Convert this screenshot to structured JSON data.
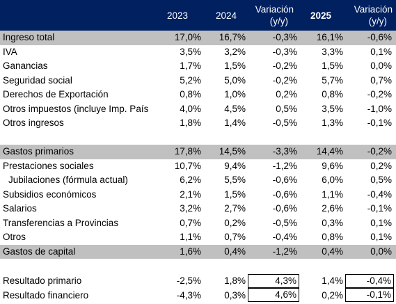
{
  "header": {
    "col_2023": "2023",
    "col_2024": "2024",
    "var1_line1": "Variación",
    "var1_line2": "(y/y)",
    "col_2025": "2025",
    "var2_line1": "Variación",
    "var2_line2": "(y/y)"
  },
  "rows": [
    {
      "label": "Ingreso total",
      "v2023": "17,0%",
      "v2024": "16,7%",
      "var1": "-0,3%",
      "v2025": "16,1%",
      "var2": "-0,6%"
    },
    {
      "label": "IVA",
      "v2023": "3,5%",
      "v2024": "3,2%",
      "var1": "-0,3%",
      "v2025": "3,3%",
      "var2": "0,1%"
    },
    {
      "label": "Ganancias",
      "v2023": "1,7%",
      "v2024": "1,5%",
      "var1": "-0,2%",
      "v2025": "1,5%",
      "var2": "0,0%"
    },
    {
      "label": "Seguridad social",
      "v2023": "5,2%",
      "v2024": "5,0%",
      "var1": "-0,2%",
      "v2025": "5,7%",
      "var2": "0,7%"
    },
    {
      "label": "Derechos de Exportación",
      "v2023": "0,8%",
      "v2024": "1,0%",
      "var1": "0,2%",
      "v2025": "0,8%",
      "var2": "-0,2%"
    },
    {
      "label": "Otros impuestos (incluye Imp. País",
      "v2023": "4,0%",
      "v2024": "4,5%",
      "var1": "0,5%",
      "v2025": "3,5%",
      "var2": "-1,0%"
    },
    {
      "label": "Otros ingresos",
      "v2023": "1,8%",
      "v2024": "1,4%",
      "var1": "-0,5%",
      "v2025": "1,3%",
      "var2": "-0,1%"
    },
    {
      "label": "Gastos primarios",
      "v2023": "17,8%",
      "v2024": "14,5%",
      "var1": "-3,3%",
      "v2025": "14,4%",
      "var2": "-0,2%"
    },
    {
      "label": "Prestaciones sociales",
      "v2023": "10,7%",
      "v2024": "9,4%",
      "var1": "-1,2%",
      "v2025": "9,6%",
      "var2": "0,2%"
    },
    {
      "label": "Jubilaciones (fórmula actual)",
      "v2023": "6,2%",
      "v2024": "5,5%",
      "var1": "-0,6%",
      "v2025": "6,0%",
      "var2": "0,5%"
    },
    {
      "label": "Subsidios económicos",
      "v2023": "2,1%",
      "v2024": "1,5%",
      "var1": "-0,6%",
      "v2025": "1,1%",
      "var2": "-0,4%"
    },
    {
      "label": "Salarios",
      "v2023": "3,2%",
      "v2024": "2,7%",
      "var1": "-0,6%",
      "v2025": "2,6%",
      "var2": "-0,1%"
    },
    {
      "label": "Transferencias a Provincias",
      "v2023": "0,7%",
      "v2024": "0,2%",
      "var1": "-0,5%",
      "v2025": "0,3%",
      "var2": "0,1%"
    },
    {
      "label": "Otros",
      "v2023": "1,1%",
      "v2024": "0,7%",
      "var1": "-0,4%",
      "v2025": "0,8%",
      "var2": "0,1%"
    },
    {
      "label": "Gastos de capital",
      "v2023": "1,6%",
      "v2024": "0,4%",
      "var1": "-1,2%",
      "v2025": "0,4%",
      "var2": "0,0%"
    },
    {
      "label": "Resultado primario",
      "v2023": "-2,5%",
      "v2024": "1,8%",
      "var1": "4,3%",
      "v2025": "1,4%",
      "var2": "-0,4%"
    },
    {
      "label": "Resultado financiero",
      "v2023": "-4,3%",
      "v2024": "0,3%",
      "var1": "4,6%",
      "v2025": "0,2%",
      "var2": "-0,1%"
    }
  ],
  "colors": {
    "header_bg": "#002060",
    "header_text": "#ffffff",
    "section_bg": "#c0c0c0"
  }
}
